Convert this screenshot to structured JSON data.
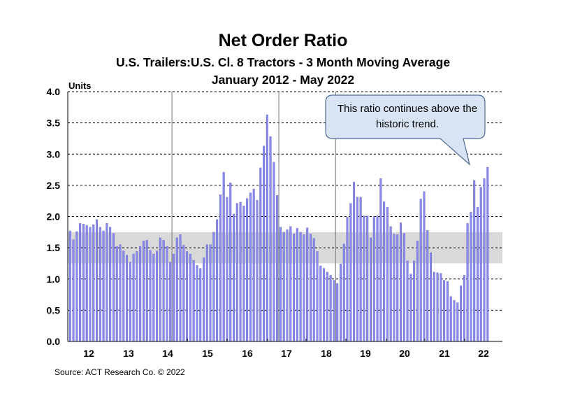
{
  "chart_data": {
    "type": "bar",
    "title": "Net Order Ratio",
    "subtitle": "U.S. Trailers:U.S. Cl. 8 Tractors - 3 Month Moving Average",
    "subtitle2": "January 2012 - May 2022",
    "ylabel": "Units",
    "ylim": [
      0,
      4
    ],
    "y_ticks": [
      "0.0",
      "0.5",
      "1.0",
      "1.5",
      "2.0",
      "2.5",
      "3.0",
      "3.5",
      "4.0"
    ],
    "x_ticks": [
      "12",
      "13",
      "14",
      "15",
      "16",
      "17",
      "18",
      "19",
      "20",
      "21",
      "22"
    ],
    "grid": true,
    "historic_trend_band": [
      1.25,
      1.75
    ],
    "annotation": "This ratio continues above the historic trend.",
    "source": "Source: ACT Research Co. © 2022",
    "values": [
      1.77,
      1.63,
      1.76,
      1.89,
      1.88,
      1.86,
      1.83,
      1.87,
      1.95,
      1.83,
      1.77,
      1.89,
      1.83,
      1.73,
      1.52,
      1.55,
      1.45,
      1.38,
      1.27,
      1.4,
      1.44,
      1.52,
      1.61,
      1.62,
      1.46,
      1.4,
      1.45,
      1.66,
      1.62,
      1.52,
      1.27,
      1.4,
      1.66,
      1.71,
      1.54,
      1.44,
      1.4,
      1.3,
      1.22,
      1.17,
      1.34,
      1.55,
      1.55,
      1.75,
      1.95,
      2.35,
      2.71,
      2.31,
      2.54,
      2.04,
      2.21,
      2.23,
      2.17,
      2.29,
      2.38,
      2.44,
      2.26,
      2.78,
      3.13,
      3.63,
      3.28,
      2.87,
      2.34,
      1.83,
      1.75,
      1.79,
      1.84,
      1.72,
      1.81,
      1.75,
      1.71,
      1.82,
      1.72,
      1.65,
      1.44,
      1.21,
      1.17,
      1.11,
      1.06,
      0.98,
      0.93,
      1.24,
      1.56,
      1.99,
      2.21,
      2.55,
      2.31,
      2.31,
      2.01,
      2.01,
      1.66,
      2.0,
      2.01,
      2.61,
      2.24,
      2.15,
      1.84,
      1.72,
      1.71,
      1.9,
      1.73,
      1.29,
      1.08,
      1.29,
      1.61,
      2.28,
      2.4,
      1.78,
      1.42,
      1.11,
      1.1,
      1.09,
      0.98,
      0.96,
      0.72,
      0.66,
      0.62,
      0.89,
      1.06,
      1.89,
      2.07,
      2.58,
      2.15,
      2.47,
      2.61,
      2.79
    ],
    "colors": {
      "bar": "#8a8ae8",
      "bar_edge": "#5f5fd0",
      "band": "#d9d9d9",
      "callout_fill": "#d8e3f4",
      "callout_stroke": "#4f6b94"
    }
  }
}
